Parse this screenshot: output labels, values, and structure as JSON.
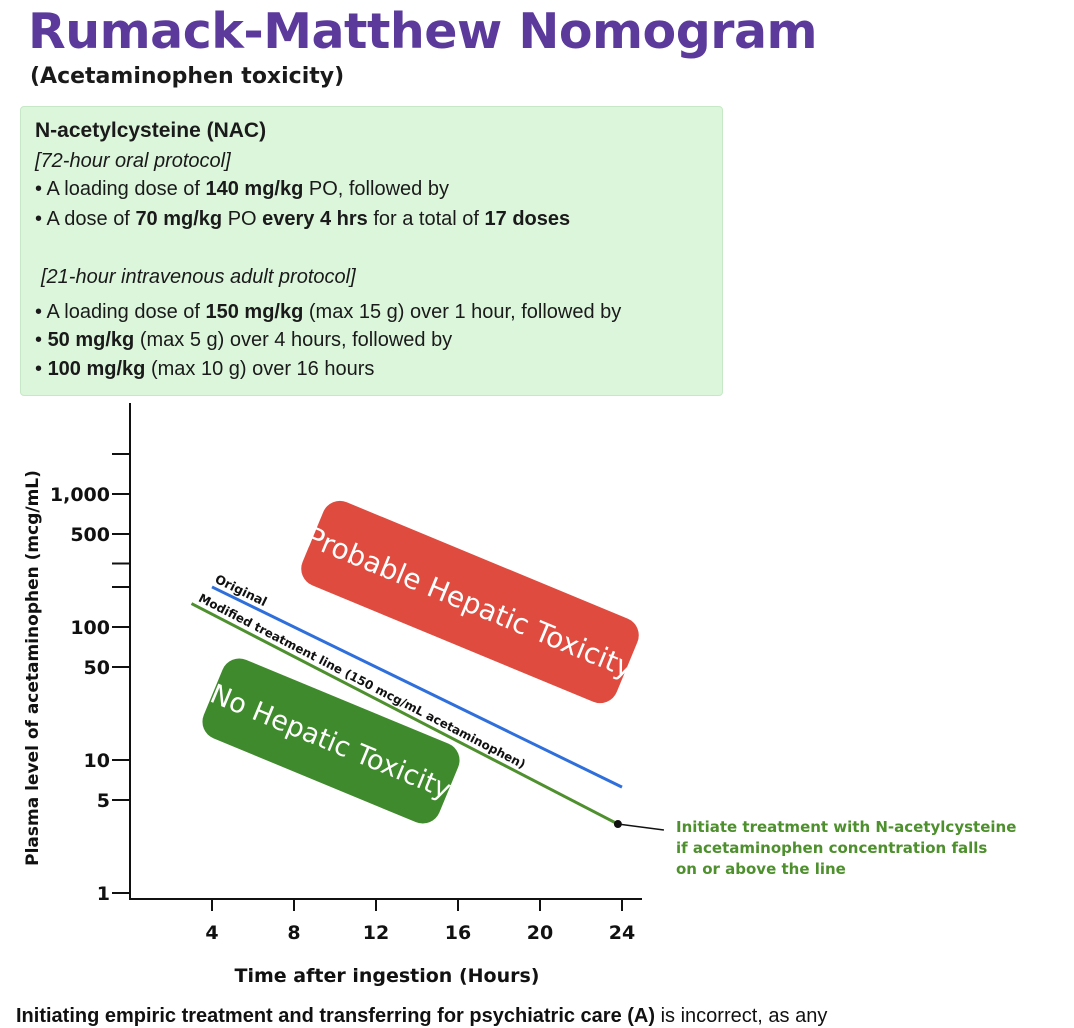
{
  "header": {
    "title": "Rumack-Matthew Nomogram",
    "subtitle": "(Acetaminophen toxicity)"
  },
  "nac": {
    "heading": "N-acetylcysteine (NAC)",
    "oral_protocol": "[72-hour oral protocol]",
    "oral_lines": [
      [
        {
          "t": "A loading dose of "
        },
        {
          "t": "140 mg/kg",
          "b": true
        },
        {
          "t": " PO, followed by"
        }
      ],
      [
        {
          "t": "A dose of "
        },
        {
          "t": "70 mg/kg",
          "b": true
        },
        {
          "t": " PO "
        },
        {
          "t": "every 4 hrs",
          "b": true
        },
        {
          "t": " for a total of "
        },
        {
          "t": "17 doses",
          "b": true
        }
      ]
    ],
    "iv_protocol": "[21-hour intravenous adult protocol]",
    "iv_lines": [
      [
        {
          "t": "A loading dose of "
        },
        {
          "t": "150 mg/kg",
          "b": true
        },
        {
          "t": " (max 15 g) over 1 hour, followed by"
        }
      ],
      [
        {
          "t": "50 mg/kg",
          "b": true
        },
        {
          "t": " (max 5 g) over 4 hours, followed by"
        }
      ],
      [
        {
          "t": "100 mg/kg",
          "b": true
        },
        {
          "t": " (max 10 g) over 16 hours"
        }
      ]
    ]
  },
  "chart_data": {
    "type": "line",
    "title": "",
    "xlabel": "Time after ingestion (Hours)",
    "ylabel": "Plasma level of acetaminophen (mcg/mL)",
    "yscale": "log",
    "xlim": [
      0,
      24
    ],
    "ylim": [
      1,
      1000
    ],
    "x_ticks": [
      4,
      8,
      12,
      16,
      20,
      24
    ],
    "y_tick_labels": [
      {
        "value": 1,
        "label": "1"
      },
      {
        "value": 5,
        "label": "5"
      },
      {
        "value": 10,
        "label": "10"
      },
      {
        "value": 50,
        "label": "50"
      },
      {
        "value": 100,
        "label": "100"
      },
      {
        "value": 500,
        "label": "500"
      },
      {
        "value": 1000,
        "label": "1,000"
      }
    ],
    "y_minor_ticks": [
      200,
      300,
      2000
    ],
    "series": [
      {
        "name": "Original",
        "color": "#2f6fdc",
        "x": [
          4,
          24
        ],
        "y": [
          200,
          6.25
        ]
      },
      {
        "name": "Modified treatment line (150 mcg/mL acetaminophen)",
        "color": "#4e8f2e",
        "x": [
          3,
          23.8
        ],
        "y": [
          150,
          3.3
        ]
      }
    ],
    "regions": [
      {
        "label": "Probable Hepatic Toxicity",
        "color": "#e04b3f"
      },
      {
        "label": "No Hepatic Toxicity",
        "color": "#3f8a2c"
      }
    ],
    "annotation": {
      "lines": [
        "Initiate treatment with N-acetylcysteine",
        "if acetaminophen concentration falls",
        "on or above the line"
      ],
      "color": "#4e8f2e",
      "point_x": 23.8,
      "point_y": 3.3
    }
  },
  "footer": {
    "bold_text": "Initiating empiric treatment and transferring for psychiatric care (A)",
    "rest_text": " is incorrect, as any"
  }
}
